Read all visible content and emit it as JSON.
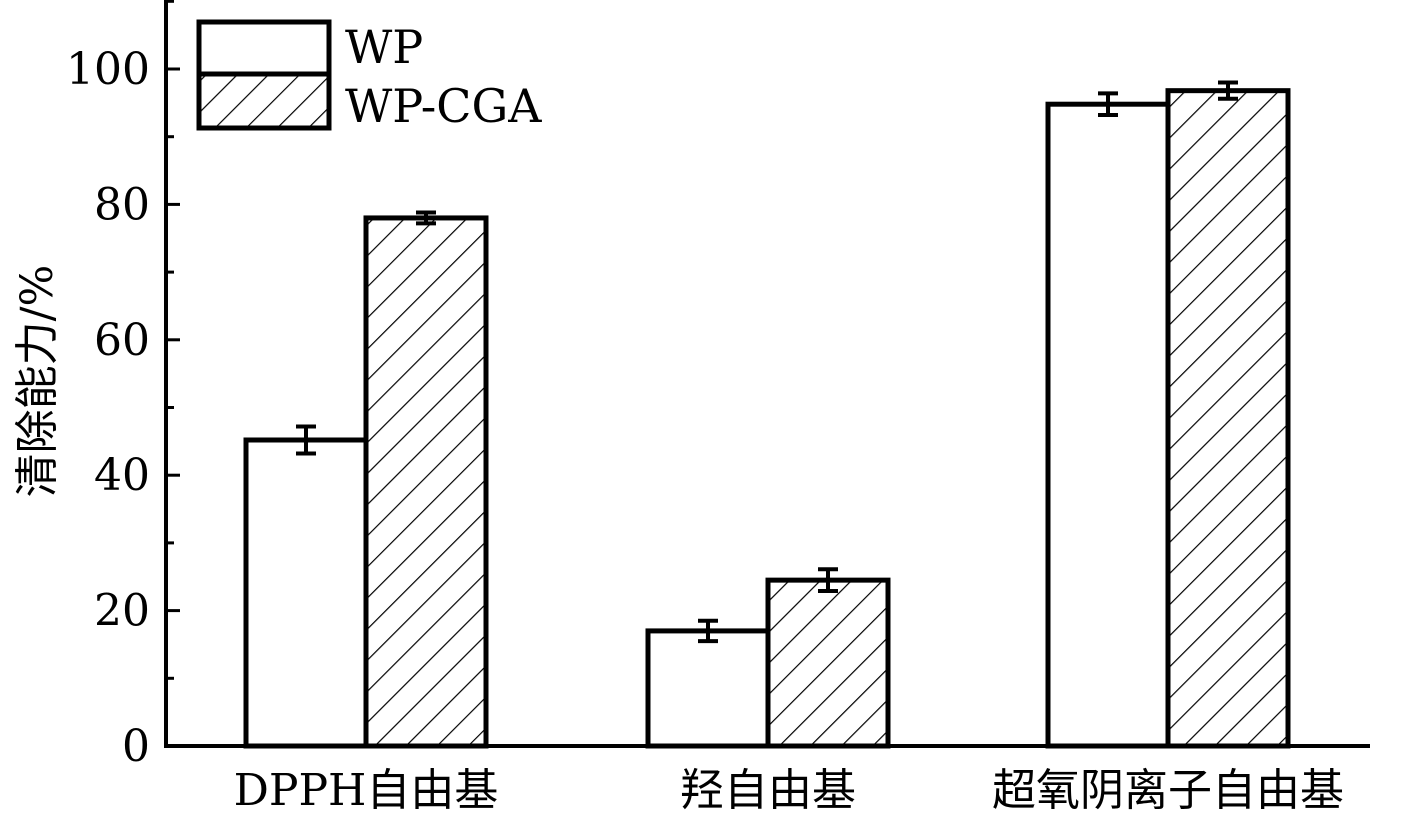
{
  "chart_data": {
    "type": "bar",
    "categories": [
      "DPPH自由基",
      "羟自由基",
      "超氧阴离子自由基"
    ],
    "series": [
      {
        "name": "WP",
        "values": [
          45.2,
          17.0,
          94.8
        ],
        "errors": [
          2.0,
          1.5,
          1.6
        ],
        "fill": "plain"
      },
      {
        "name": "WP-CGA",
        "values": [
          78.0,
          24.5,
          96.8
        ],
        "errors": [
          0.8,
          1.6,
          1.2
        ],
        "fill": "hatched"
      }
    ],
    "ylabel": "清除能力/%",
    "xlabel": "",
    "ylim": [
      0,
      110
    ],
    "yticks": [
      0,
      20,
      40,
      60,
      80,
      100
    ],
    "grid": false,
    "legend": "top-left"
  }
}
